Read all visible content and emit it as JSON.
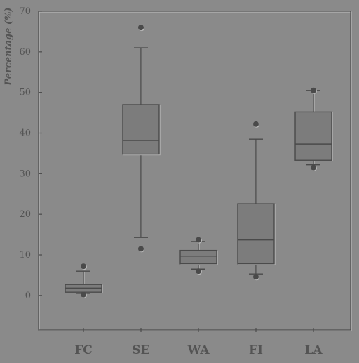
{
  "chart_data": {
    "type": "boxplot",
    "ylabel": "Percentage (%)",
    "ylim": [
      -8.5,
      70
    ],
    "yticks": [
      0,
      10,
      20,
      30,
      40,
      50,
      60,
      70
    ],
    "categories": [
      "FC",
      "SE",
      "WA",
      "FI",
      "LA"
    ],
    "boxes": [
      {
        "category": "FC",
        "whisker_low": 0.5,
        "q1": 0.8,
        "median": 1.8,
        "q3": 2.7,
        "whisker_high": 6.0,
        "outliers": [
          7.2,
          0.2
        ]
      },
      {
        "category": "SE",
        "whisker_low": 14.3,
        "q1": 34.8,
        "median": 38.2,
        "q3": 47.0,
        "whisker_high": 61.0,
        "outliers": [
          66.0,
          11.5
        ]
      },
      {
        "category": "WA",
        "whisker_low": 6.5,
        "q1": 7.8,
        "median": 9.7,
        "q3": 11.1,
        "whisker_high": 13.3,
        "outliers": [
          13.7,
          6.0
        ]
      },
      {
        "category": "FI",
        "whisker_low": 5.3,
        "q1": 7.8,
        "median": 13.7,
        "q3": 22.6,
        "whisker_high": 38.5,
        "outliers": [
          42.2,
          4.6
        ]
      },
      {
        "category": "LA",
        "whisker_low": 32.2,
        "q1": 33.3,
        "median": 37.3,
        "q3": 45.2,
        "whisker_high": 50.5,
        "outliers": [
          50.5,
          31.5
        ]
      }
    ],
    "grid": false,
    "legend": "none",
    "colors": {
      "background": "#8a8a8a",
      "box_fill": "#7c7c7c",
      "line": "#4a4a4a",
      "highlight": "#b8b8b8",
      "text": "#545454"
    }
  }
}
